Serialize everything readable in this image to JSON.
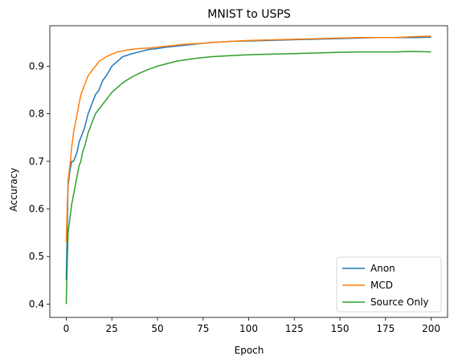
{
  "chart_data": {
    "type": "line",
    "title": "MNIST to USPS",
    "xlabel": "Epoch",
    "ylabel": "Accuracy",
    "xlim": [
      -9,
      209
    ],
    "ylim": [
      0.372,
      0.985
    ],
    "xticks": [
      0,
      25,
      50,
      75,
      100,
      125,
      150,
      175,
      200
    ],
    "yticks": [
      0.4,
      0.5,
      0.6,
      0.7,
      0.8,
      0.9
    ],
    "ytick_labels": [
      "0.4",
      "0.5",
      "0.6",
      "0.7",
      "0.8",
      "0.9"
    ],
    "grid": false,
    "legend_position": "bottom-right",
    "series": [
      {
        "name": "Anon",
        "color": "#1f77b4",
        "x": [
          0,
          1,
          2,
          3,
          4,
          5,
          6,
          7,
          8,
          9,
          10,
          12,
          14,
          16,
          18,
          20,
          22,
          25,
          28,
          31,
          35,
          40,
          45,
          50,
          55,
          60,
          65,
          70,
          75,
          80,
          90,
          100,
          110,
          120,
          130,
          140,
          150,
          160,
          170,
          180,
          190,
          200
        ],
        "y": [
          0.45,
          0.65,
          0.68,
          0.7,
          0.7,
          0.71,
          0.72,
          0.74,
          0.75,
          0.76,
          0.77,
          0.8,
          0.82,
          0.84,
          0.85,
          0.87,
          0.88,
          0.9,
          0.91,
          0.92,
          0.925,
          0.93,
          0.935,
          0.937,
          0.94,
          0.942,
          0.944,
          0.946,
          0.948,
          0.95,
          0.952,
          0.953,
          0.954,
          0.955,
          0.956,
          0.957,
          0.958,
          0.959,
          0.96,
          0.96,
          0.96,
          0.961
        ]
      },
      {
        "name": "MCD",
        "color": "#ff7f0e",
        "x": [
          0,
          1,
          2,
          3,
          4,
          5,
          6,
          7,
          8,
          9,
          10,
          12,
          14,
          16,
          18,
          20,
          22,
          25,
          28,
          31,
          35,
          40,
          45,
          50,
          55,
          60,
          65,
          70,
          75,
          80,
          90,
          100,
          110,
          120,
          130,
          140,
          150,
          160,
          170,
          180,
          190,
          200
        ],
        "y": [
          0.53,
          0.66,
          0.69,
          0.73,
          0.76,
          0.78,
          0.8,
          0.82,
          0.84,
          0.85,
          0.86,
          0.88,
          0.89,
          0.9,
          0.91,
          0.915,
          0.92,
          0.925,
          0.93,
          0.932,
          0.935,
          0.937,
          0.938,
          0.94,
          0.942,
          0.944,
          0.946,
          0.947,
          0.948,
          0.95,
          0.952,
          0.954,
          0.955,
          0.956,
          0.957,
          0.958,
          0.959,
          0.96,
          0.96,
          0.96,
          0.962,
          0.963
        ]
      },
      {
        "name": "Source Only",
        "color": "#2ca02c",
        "x": [
          0,
          1,
          2,
          3,
          4,
          5,
          6,
          7,
          8,
          9,
          10,
          12,
          14,
          16,
          18,
          20,
          22,
          25,
          28,
          31,
          35,
          40,
          45,
          50,
          55,
          60,
          65,
          70,
          75,
          80,
          90,
          100,
          110,
          120,
          130,
          140,
          150,
          160,
          170,
          180,
          190,
          200
        ],
        "y": [
          0.4,
          0.55,
          0.58,
          0.61,
          0.63,
          0.65,
          0.67,
          0.69,
          0.7,
          0.72,
          0.73,
          0.76,
          0.78,
          0.8,
          0.81,
          0.82,
          0.83,
          0.845,
          0.855,
          0.865,
          0.875,
          0.885,
          0.893,
          0.9,
          0.905,
          0.91,
          0.913,
          0.916,
          0.918,
          0.92,
          0.922,
          0.924,
          0.925,
          0.926,
          0.927,
          0.928,
          0.929,
          0.93,
          0.93,
          0.93,
          0.931,
          0.93
        ]
      }
    ]
  }
}
